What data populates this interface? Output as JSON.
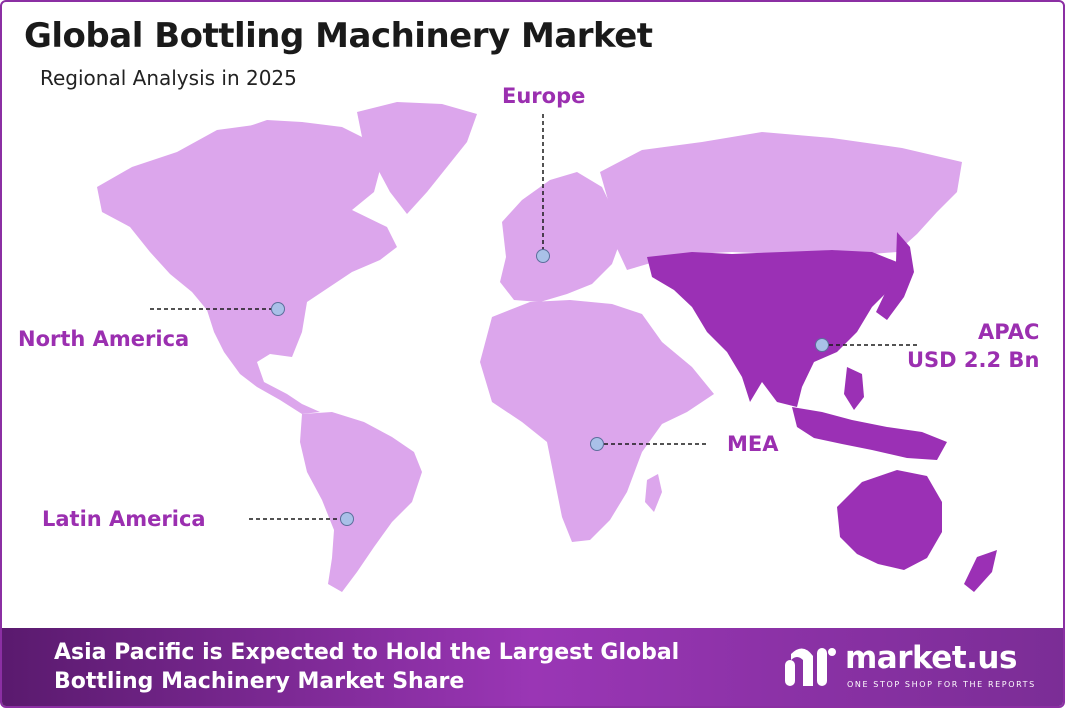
{
  "header": {
    "title": "Global Bottling Machinery Market",
    "subtitle": "Regional Analysis in 2025"
  },
  "regions": [
    {
      "id": "north-america",
      "label": "North America",
      "highlighted": false
    },
    {
      "id": "latin-america",
      "label": "Latin America",
      "highlighted": false
    },
    {
      "id": "europe",
      "label": "Europe",
      "highlighted": false
    },
    {
      "id": "mea",
      "label": "MEA",
      "highlighted": false
    },
    {
      "id": "apac",
      "label": "APAC",
      "value": "USD 2.2 Bn",
      "highlighted": true
    }
  ],
  "colors": {
    "land": "#dca6ec",
    "land_dark": "#c88ee0",
    "highlight": "#9b30b5",
    "label": "#9b2fb0",
    "marker_fill": "#a9c0e8",
    "footer_start": "#5a1a6e",
    "footer_end": "#9a36b5"
  },
  "footer": {
    "line1": "Asia Pacific is Expected to Hold the Largest Global",
    "line2": "Bottling Machinery Market Share"
  },
  "logo": {
    "name": "market.us",
    "tagline": "ONE STOP SHOP FOR THE REPORTS"
  }
}
